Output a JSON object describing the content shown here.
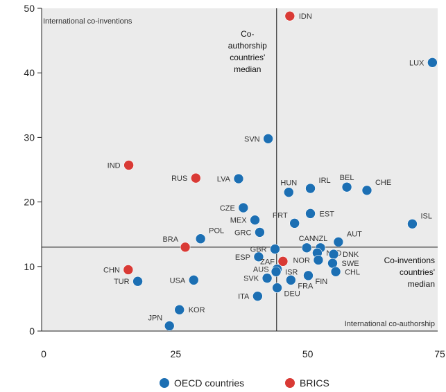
{
  "chart_data": {
    "type": "scatter",
    "xlim": [
      0,
      75
    ],
    "ylim": [
      0,
      50
    ],
    "x_ticks": [
      0,
      25,
      50,
      75
    ],
    "y_ticks": [
      0,
      10,
      20,
      30,
      40,
      50
    ],
    "medians": {
      "x": 44.5,
      "y": 13
    },
    "median_labels": {
      "vertical": [
        "Co-",
        "authorship",
        "countries'",
        "median"
      ],
      "horizontal": [
        "Co-inventions",
        "countries'",
        "median"
      ]
    },
    "corner_labels": {
      "top_left": "International co-inventions",
      "bottom_right": "International co-authorship"
    },
    "colors": {
      "OECD countries": "#1c6fb3",
      "BRICS": "#d93a35",
      "plot_bg": "#ebebeb"
    },
    "legend": [
      {
        "name": "OECD countries",
        "color": "#1c6fb3"
      },
      {
        "name": "BRICS",
        "color": "#d93a35"
      }
    ],
    "legend_position": "bottom",
    "points": [
      {
        "label": "IDN",
        "x": 47,
        "y": 48.8,
        "group": "BRICS",
        "pos": "r"
      },
      {
        "label": "LUX",
        "x": 74,
        "y": 41.6,
        "group": "OECD countries",
        "pos": "l"
      },
      {
        "label": "SVN",
        "x": 42.9,
        "y": 29.8,
        "group": "OECD countries",
        "pos": "l"
      },
      {
        "label": "IND",
        "x": 16.5,
        "y": 25.7,
        "group": "BRICS",
        "pos": "l"
      },
      {
        "label": "RUS",
        "x": 29.2,
        "y": 23.7,
        "group": "BRICS",
        "pos": "l"
      },
      {
        "label": "LVA",
        "x": 37.3,
        "y": 23.6,
        "group": "OECD countries",
        "pos": "l"
      },
      {
        "label": "HUN",
        "x": 46.8,
        "y": 21.5,
        "group": "OECD countries",
        "pos": "a"
      },
      {
        "label": "IRL",
        "x": 50.9,
        "y": 22.1,
        "group": "OECD countries",
        "pos": "ar"
      },
      {
        "label": "BEL",
        "x": 57.8,
        "y": 22.3,
        "group": "OECD countries",
        "pos": "a"
      },
      {
        "label": "CHE",
        "x": 61.6,
        "y": 21.8,
        "group": "OECD countries",
        "pos": "ar"
      },
      {
        "label": "CZE",
        "x": 38.2,
        "y": 19.1,
        "group": "OECD countries",
        "pos": "l"
      },
      {
        "label": "MEX",
        "x": 40.4,
        "y": 17.2,
        "group": "OECD countries",
        "pos": "l"
      },
      {
        "label": "EST",
        "x": 50.9,
        "y": 18.2,
        "group": "OECD countries",
        "pos": "r"
      },
      {
        "label": "PRT",
        "x": 47.9,
        "y": 16.7,
        "group": "OECD countries",
        "pos": "al"
      },
      {
        "label": "ISL",
        "x": 70.2,
        "y": 16.6,
        "group": "OECD countries",
        "pos": "ar"
      },
      {
        "label": "GRC",
        "x": 41.3,
        "y": 15.3,
        "group": "OECD countries",
        "pos": "l"
      },
      {
        "label": "POL",
        "x": 30.1,
        "y": 14.3,
        "group": "OECD countries",
        "pos": "ar"
      },
      {
        "label": "BRA",
        "x": 27.2,
        "y": 13.0,
        "group": "BRICS",
        "pos": "al"
      },
      {
        "label": "AUT",
        "x": 56.2,
        "y": 13.8,
        "group": "OECD countries",
        "pos": "ar"
      },
      {
        "label": "CAN",
        "x": 50.2,
        "y": 12.9,
        "group": "OECD countries",
        "pos": "a"
      },
      {
        "label": "NZL",
        "x": 52.8,
        "y": 12.9,
        "group": "OECD countries",
        "pos": "a"
      },
      {
        "label": "GBR",
        "x": 44.2,
        "y": 12.7,
        "group": "OECD countries",
        "pos": "l"
      },
      {
        "label": "NLD",
        "x": 52.2,
        "y": 12.1,
        "group": "OECD countries",
        "pos": "r"
      },
      {
        "label": "DNK",
        "x": 55.3,
        "y": 11.9,
        "group": "OECD countries",
        "pos": "r"
      },
      {
        "label": "ESP",
        "x": 41.1,
        "y": 11.5,
        "group": "OECD countries",
        "pos": "l"
      },
      {
        "label": "ZAF",
        "x": 45.7,
        "y": 10.8,
        "group": "BRICS",
        "pos": "l"
      },
      {
        "label": "NOR",
        "x": 52.4,
        "y": 11.0,
        "group": "OECD countries",
        "pos": "l"
      },
      {
        "label": "SWE",
        "x": 55.1,
        "y": 10.5,
        "group": "OECD countries",
        "pos": "r"
      },
      {
        "label": "CHN",
        "x": 16.4,
        "y": 9.5,
        "group": "BRICS",
        "pos": "l"
      },
      {
        "label": "AUS",
        "x": 44.6,
        "y": 9.6,
        "group": "OECD countries",
        "pos": "l"
      },
      {
        "label": "ISR",
        "x": 44.4,
        "y": 9.2,
        "group": "OECD countries",
        "pos": "r"
      },
      {
        "label": "CHL",
        "x": 55.7,
        "y": 9.2,
        "group": "OECD countries",
        "pos": "r"
      },
      {
        "label": "SVK",
        "x": 42.7,
        "y": 8.2,
        "group": "OECD countries",
        "pos": "l"
      },
      {
        "label": "FIN",
        "x": 50.5,
        "y": 8.6,
        "group": "OECD countries",
        "pos": "br"
      },
      {
        "label": "FRA",
        "x": 47.2,
        "y": 7.9,
        "group": "OECD countries",
        "pos": "br"
      },
      {
        "label": "TUR",
        "x": 18.2,
        "y": 7.7,
        "group": "OECD countries",
        "pos": "l"
      },
      {
        "label": "USA",
        "x": 28.8,
        "y": 7.9,
        "group": "OECD countries",
        "pos": "l"
      },
      {
        "label": "DEU",
        "x": 44.6,
        "y": 6.7,
        "group": "OECD countries",
        "pos": "br"
      },
      {
        "label": "ITA",
        "x": 40.9,
        "y": 5.4,
        "group": "OECD countries",
        "pos": "l"
      },
      {
        "label": "KOR",
        "x": 26.1,
        "y": 3.3,
        "group": "OECD countries",
        "pos": "r"
      },
      {
        "label": "JPN",
        "x": 24.2,
        "y": 0.8,
        "group": "OECD countries",
        "pos": "al"
      }
    ]
  }
}
